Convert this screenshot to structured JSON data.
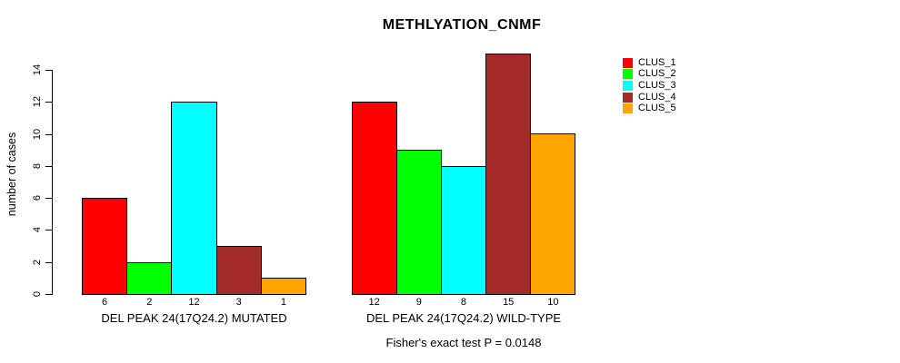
{
  "chart_data": {
    "type": "bar",
    "title": "METHLYATION_CNMF",
    "ylabel": "number of cases",
    "xlabel": "",
    "ylim": [
      0,
      15
    ],
    "yticks": [
      0,
      2,
      4,
      6,
      8,
      10,
      12,
      14
    ],
    "grid": false,
    "legend_position": "right",
    "legend": [
      {
        "label": "CLUS_1",
        "color": "#FF0000"
      },
      {
        "label": "CLUS_2",
        "color": "#00FF00"
      },
      {
        "label": "CLUS_3",
        "color": "#00FFFF"
      },
      {
        "label": "CLUS_4",
        "color": "#A52A2A"
      },
      {
        "label": "CLUS_5",
        "color": "#FFA500"
      }
    ],
    "groups": [
      {
        "label": "DEL PEAK 24(17Q24.2) MUTATED",
        "values": [
          6,
          2,
          12,
          3,
          1
        ]
      },
      {
        "label": "DEL PEAK 24(17Q24.2) WILD-TYPE",
        "values": [
          12,
          9,
          8,
          15,
          10
        ]
      }
    ],
    "show_bar_values": true,
    "footnote": "Fisher's exact test P = 0.0148"
  }
}
